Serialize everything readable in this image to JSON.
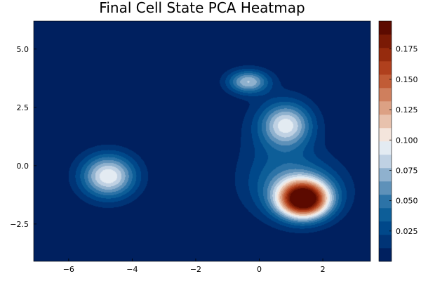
{
  "chart_data": {
    "type": "heatmap",
    "title": "Final Cell State PCA Heatmap",
    "xlabel": "",
    "ylabel": "",
    "xlim": [
      -7.1,
      3.5
    ],
    "ylim": [
      -4.1,
      6.2
    ],
    "x_ticks": [
      -6,
      -4,
      -2,
      0,
      2
    ],
    "x_tick_labels": [
      "−6",
      "−4",
      "−2",
      "0",
      "2"
    ],
    "y_ticks": [
      -2.5,
      0.0,
      2.5,
      5.0
    ],
    "y_tick_labels": [
      "−2.5",
      "0.0",
      "2.5",
      "5.0"
    ],
    "colorbar": {
      "range": [
        0,
        0.198
      ],
      "ticks": [
        0.025,
        0.05,
        0.075,
        0.1,
        0.125,
        0.15,
        0.175
      ],
      "tick_labels": [
        "0.025",
        "0.050",
        "0.075",
        "0.100",
        "0.125",
        "0.150",
        "0.175"
      ],
      "levels": 18,
      "colors": [
        "#00205f",
        "#003476",
        "#00488a",
        "#0d5e98",
        "#2c73a7",
        "#5e91b9",
        "#8fb1ce",
        "#bfd1e3",
        "#e3ebf2",
        "#f4e5dc",
        "#e8c2ad",
        "#dca184",
        "#cf7f5d",
        "#c15c36",
        "#b0401d",
        "#962b0d",
        "#7a1a05",
        "#5c0a00"
      ]
    },
    "density_components": [
      {
        "x": 1.4,
        "y": -1.45,
        "peak": 0.198,
        "spread": [
          0.55,
          0.55
        ]
      },
      {
        "x": 1.2,
        "y": -0.9,
        "peak": 0.045,
        "spread": [
          1.0,
          0.9
        ]
      },
      {
        "x": 0.85,
        "y": 1.75,
        "peak": 0.082,
        "spread": [
          0.55,
          0.65
        ]
      },
      {
        "x": -0.35,
        "y": 3.6,
        "peak": 0.075,
        "spread": [
          0.45,
          0.35
        ]
      },
      {
        "x": -4.75,
        "y": -0.45,
        "peak": 0.098,
        "spread": [
          0.6,
          0.65
        ]
      },
      {
        "x": 0.5,
        "y": 0.7,
        "peak": 0.018,
        "spread": [
          0.9,
          1.6
        ]
      }
    ],
    "grid": false,
    "legend": "none",
    "colorbar_placement": "right"
  }
}
